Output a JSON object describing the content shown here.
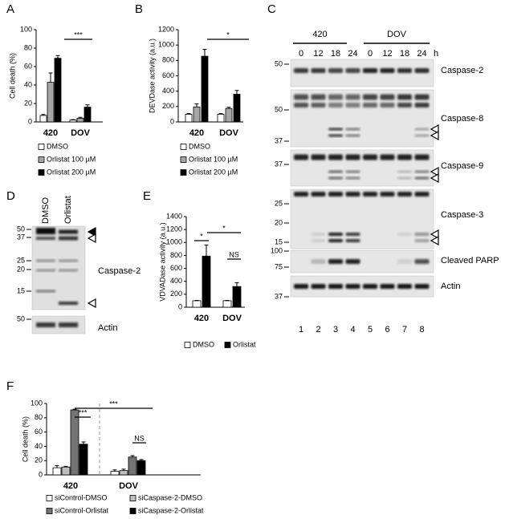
{
  "panels": [
    "A",
    "B",
    "C",
    "D",
    "E",
    "F"
  ],
  "chart_data": [
    {
      "type": "bar",
      "y_label": "Cell death (%)",
      "categories": [
        "420",
        "DOV"
      ],
      "ylim": [
        0,
        100
      ],
      "yticks": [
        0,
        20,
        40,
        60,
        80,
        100
      ],
      "series": [
        {
          "name": "DMSO",
          "color": "#ffffff",
          "values": [
            7,
            2
          ],
          "errors": [
            1,
            0.5
          ]
        },
        {
          "name": "Orlistat 100 µM",
          "color": "#a6a6a6",
          "values": [
            43,
            4
          ],
          "errors": [
            10,
            1
          ]
        },
        {
          "name": "Orlistat 200 µM",
          "color": "#000000",
          "values": [
            69,
            16
          ],
          "errors": [
            3,
            2.5
          ]
        }
      ],
      "annotations": [
        "***"
      ]
    },
    {
      "type": "bar",
      "y_label": "DEVDase activity (a.u.)",
      "categories": [
        "420",
        "DOV"
      ],
      "ylim": [
        0,
        1200
      ],
      "yticks": [
        0,
        200,
        400,
        600,
        800,
        1000,
        1200
      ],
      "series": [
        {
          "name": "DMSO",
          "color": "#ffffff",
          "values": [
            100,
            100
          ],
          "errors": [
            10,
            8
          ]
        },
        {
          "name": "Orlistat 100 µM",
          "color": "#a6a6a6",
          "values": [
            195,
            175
          ],
          "errors": [
            40,
            15
          ]
        },
        {
          "name": "Orlistat 200 µM",
          "color": "#000000",
          "values": [
            855,
            360
          ],
          "errors": [
            90,
            50
          ]
        }
      ],
      "annotations": [
        "*"
      ]
    },
    {
      "type": "bar",
      "y_label": "VDVADase activity (a.u.)",
      "categories": [
        "420",
        "DOV"
      ],
      "ylim": [
        0,
        1400
      ],
      "yticks": [
        0,
        200,
        400,
        600,
        800,
        1000,
        1200,
        1400
      ],
      "series": [
        {
          "name": "DMSO",
          "color": "#ffffff",
          "values": [
            100,
            100
          ],
          "errors": [
            5,
            5
          ]
        },
        {
          "name": "Orlistat",
          "color": "#000000",
          "values": [
            790,
            320
          ],
          "errors": [
            170,
            60
          ]
        }
      ],
      "annotations": [
        "*",
        "*",
        "NS"
      ]
    },
    {
      "type": "bar",
      "y_label": "Cell death (%)",
      "categories": [
        "420",
        "DOV"
      ],
      "ylim": [
        0,
        100
      ],
      "yticks": [
        0,
        20,
        40,
        60,
        80,
        100
      ],
      "series": [
        {
          "name": "siControl-DMSO",
          "color": "#ffffff",
          "values": [
            10,
            5
          ],
          "errors": [
            3,
            2
          ]
        },
        {
          "name": "siCaspase-2-DMSO",
          "color": "#bfbfbf",
          "values": [
            11,
            6
          ],
          "errors": [
            1,
            2
          ]
        },
        {
          "name": "siControl-Orlistat",
          "color": "#737373",
          "values": [
            91,
            25
          ],
          "errors": [
            1,
            2
          ]
        },
        {
          "name": "siCaspase-2-Orlistat",
          "color": "#000000",
          "values": [
            43,
            20
          ],
          "errors": [
            3,
            1.5
          ]
        }
      ],
      "annotations": [
        "***",
        "***",
        "NS"
      ]
    }
  ],
  "blot_c": {
    "groups": [
      "420",
      "DOV"
    ],
    "timepoints": [
      "0",
      "12",
      "18",
      "24",
      "0",
      "12",
      "18",
      "24"
    ],
    "time_unit": "h",
    "lanes": [
      "1",
      "2",
      "3",
      "4",
      "5",
      "6",
      "7",
      "8"
    ],
    "proteins": [
      "Caspase-2",
      "Caspase-8",
      "Caspase-9",
      "Caspase-3",
      "Cleaved PARP",
      "Actin"
    ],
    "markers": [
      "50",
      "50",
      "37",
      "37",
      "25",
      "20",
      "15",
      "100",
      "75",
      "37"
    ]
  },
  "blot_d": {
    "lanes": [
      "DMSO",
      "Orlistat"
    ],
    "markers": [
      "50",
      "37",
      "25",
      "20",
      "15",
      "50"
    ],
    "proteins": [
      "Caspase-2",
      "Actin"
    ]
  }
}
